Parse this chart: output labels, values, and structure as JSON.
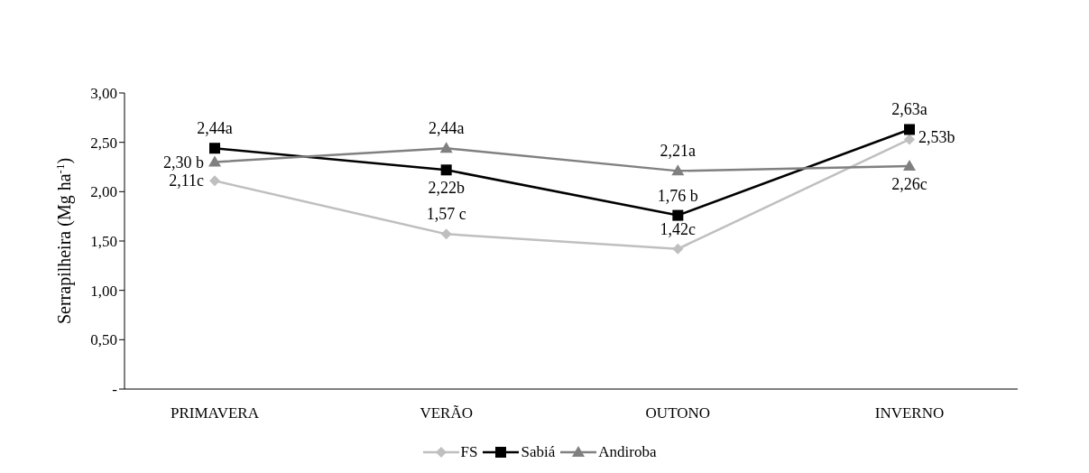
{
  "chart_data": {
    "type": "line",
    "ylabel": "Serrapilheira (Mg ha$^{-1}$)",
    "categories": [
      "PRIMAVERA",
      "VERÃO",
      "OUTONO",
      "INVERNO"
    ],
    "series": [
      {
        "name": "FS",
        "color": "#bfbfbf",
        "marker": "diamond",
        "values": [
          2.11,
          1.57,
          1.42,
          2.53
        ],
        "value_labels": [
          "2,11c",
          "1,57 c",
          "1,42c",
          "2,53b"
        ]
      },
      {
        "name": "Sabiá",
        "color": "#000000",
        "marker": "square",
        "values": [
          2.44,
          2.22,
          1.76,
          2.63
        ],
        "value_labels": [
          "2,44a",
          "2,22b",
          "1,76 b",
          "2,63a"
        ]
      },
      {
        "name": "Andiroba",
        "color": "#808080",
        "marker": "triangle",
        "values": [
          2.3,
          2.44,
          2.21,
          2.26
        ],
        "value_labels": [
          "2,30 b",
          "2,44a",
          "2,21a",
          "2,26c"
        ]
      }
    ],
    "ylim": [
      0,
      3
    ],
    "yticks": [
      {
        "value": 0,
        "label": "-"
      },
      {
        "value": 0.5,
        "label": "0,50"
      },
      {
        "value": 1,
        "label": "1,00"
      },
      {
        "value": 1.5,
        "label": "1,50"
      },
      {
        "value": 2,
        "label": "2,00"
      },
      {
        "value": 2.5,
        "label": "2,50"
      },
      {
        "value": 3,
        "label": "3,00"
      }
    ],
    "grid": false,
    "legend": "bottom",
    "line_style": "solid"
  }
}
